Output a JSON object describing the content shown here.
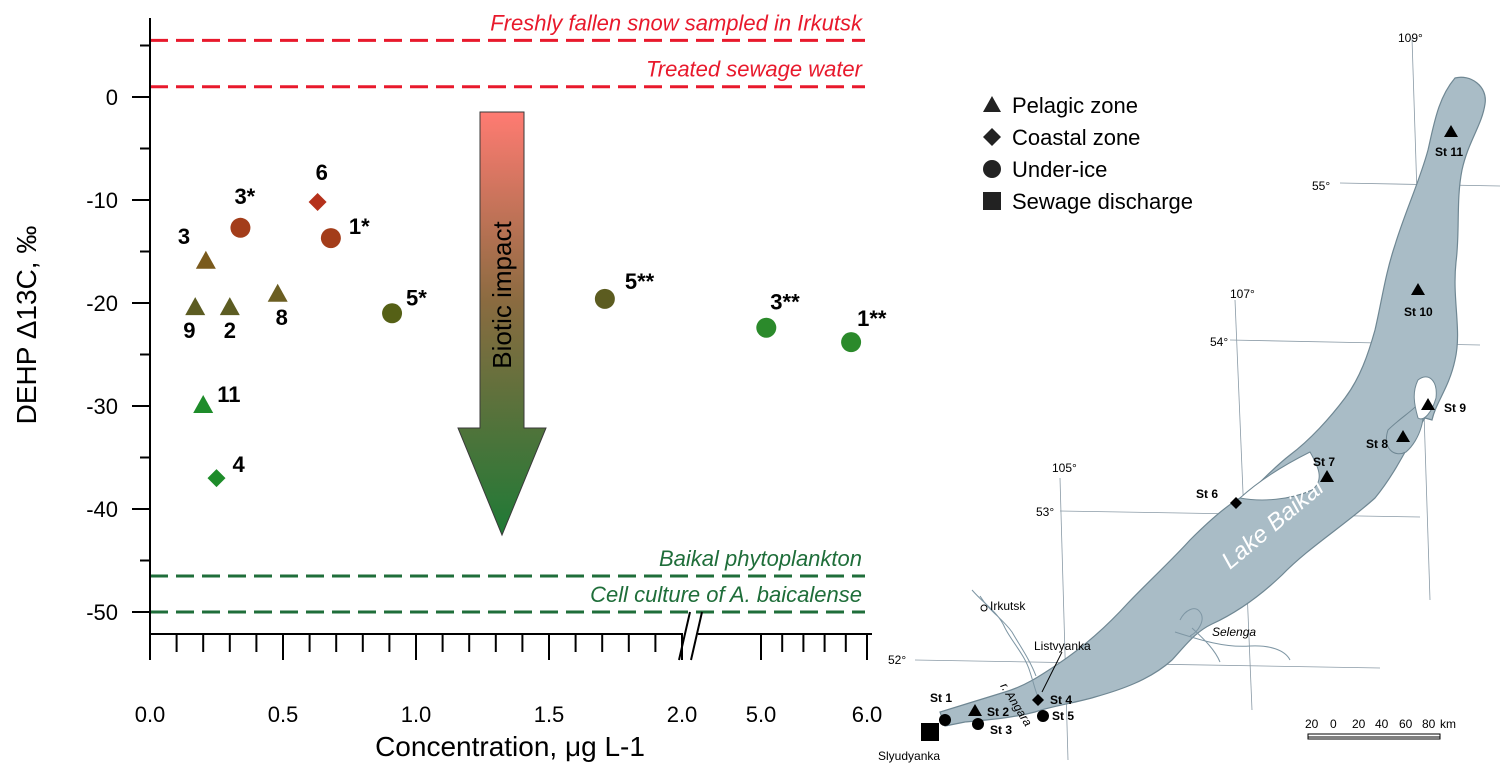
{
  "chart_data": {
    "type": "scatter",
    "xlabel": "Concentration, μg L-1",
    "ylabel": "DEHP Δ13C, ‰",
    "x_ticks": [
      "0.0",
      "0.5",
      "1.0",
      "1.5",
      "2.0",
      "5.0",
      "6.0"
    ],
    "y_ticks": [
      "0",
      "-10",
      "-20",
      "-30",
      "-40",
      "-50"
    ],
    "ylim": [
      -52,
      8
    ],
    "x_axis_break": "between 2.0 and 5.0",
    "reference_lines": [
      {
        "label": "Freshly fallen snow sampled in Irkutsk",
        "y": 5.5,
        "color": "#e8192c"
      },
      {
        "label": "Treated sewage water",
        "y": 1.0,
        "color": "#e8192c"
      },
      {
        "label": "Baikal phytoplankton",
        "y": -46.5,
        "color": "#1f6e3a"
      },
      {
        "label": "Cell culture of A. baicalense",
        "y": -50.0,
        "color": "#1f6e3a"
      }
    ],
    "arrow_label": "Biotic impact",
    "points": [
      {
        "label": "3",
        "x": 0.21,
        "y": -16.0,
        "marker": "triangle",
        "color": "#7a5a1c"
      },
      {
        "label": "9",
        "x": 0.17,
        "y": -20.5,
        "marker": "triangle",
        "color": "#5c5c22"
      },
      {
        "label": "2",
        "x": 0.3,
        "y": -20.5,
        "marker": "triangle",
        "color": "#5c5c22"
      },
      {
        "label": "8",
        "x": 0.48,
        "y": -19.2,
        "marker": "triangle",
        "color": "#6b5e22"
      },
      {
        "label": "11",
        "x": 0.2,
        "y": -30.0,
        "marker": "triangle",
        "color": "#1e8c2a"
      },
      {
        "label": "4",
        "x": 0.25,
        "y": -37.0,
        "marker": "diamond",
        "color": "#1e8c2a"
      },
      {
        "label": "6",
        "x": 0.63,
        "y": -10.2,
        "marker": "diamond",
        "color": "#b5311b"
      },
      {
        "label": "3*",
        "x": 0.34,
        "y": -12.7,
        "marker": "circle",
        "color": "#a33d1a"
      },
      {
        "label": "1*",
        "x": 0.68,
        "y": -13.7,
        "marker": "circle",
        "color": "#a33d1a"
      },
      {
        "label": "5*",
        "x": 0.91,
        "y": -21.0,
        "marker": "circle",
        "color": "#556016"
      },
      {
        "label": "5**",
        "x": 1.71,
        "y": -19.6,
        "marker": "circle",
        "color": "#5c5c20"
      },
      {
        "label": "3**",
        "x": 5.05,
        "y": -22.4,
        "marker": "circle",
        "color": "#2b8a2b"
      },
      {
        "label": "1**",
        "x": 5.85,
        "y": -23.8,
        "marker": "circle",
        "color": "#2b8a2b"
      }
    ]
  },
  "map": {
    "legend": [
      {
        "marker": "triangle",
        "label": "Pelagic zone"
      },
      {
        "marker": "diamond",
        "label": "Coastal zone"
      },
      {
        "marker": "circle",
        "label": "Under-ice"
      },
      {
        "marker": "square",
        "label": "Sewage discharge"
      }
    ],
    "lake_label": "Lake Baikal",
    "places": {
      "irkutsk": "Irkutsk",
      "angara": "r. Angara",
      "listvyanka": "Listvyanka",
      "selenga": "Selenga",
      "slyudyanka": "Slyudyanka"
    },
    "coordinates": {
      "lon_109": "109°",
      "lon_107": "107°",
      "lon_105": "105°",
      "lat_55": "55°",
      "lat_54": "54°",
      "lat_53": "53°",
      "lat_52": "52°"
    },
    "stations": [
      {
        "label": "St 1",
        "marker": "circle"
      },
      {
        "label": "St 2",
        "marker": "triangle"
      },
      {
        "label": "St 3",
        "marker": "circle"
      },
      {
        "label": "St 4",
        "marker": "diamond"
      },
      {
        "label": "St 5",
        "marker": "circle"
      },
      {
        "label": "St 6",
        "marker": "diamond"
      },
      {
        "label": "St 7",
        "marker": "triangle"
      },
      {
        "label": "St 8",
        "marker": "triangle"
      },
      {
        "label": "St 9",
        "marker": "triangle"
      },
      {
        "label": "St 10",
        "marker": "triangle"
      },
      {
        "label": "St 11",
        "marker": "triangle"
      }
    ],
    "scale_ticks": [
      "20",
      "0",
      "20",
      "40",
      "60",
      "80"
    ],
    "scale_unit": "km",
    "colors": {
      "lake": "#a9bcc6",
      "lake_outline": "#6f8793"
    }
  }
}
